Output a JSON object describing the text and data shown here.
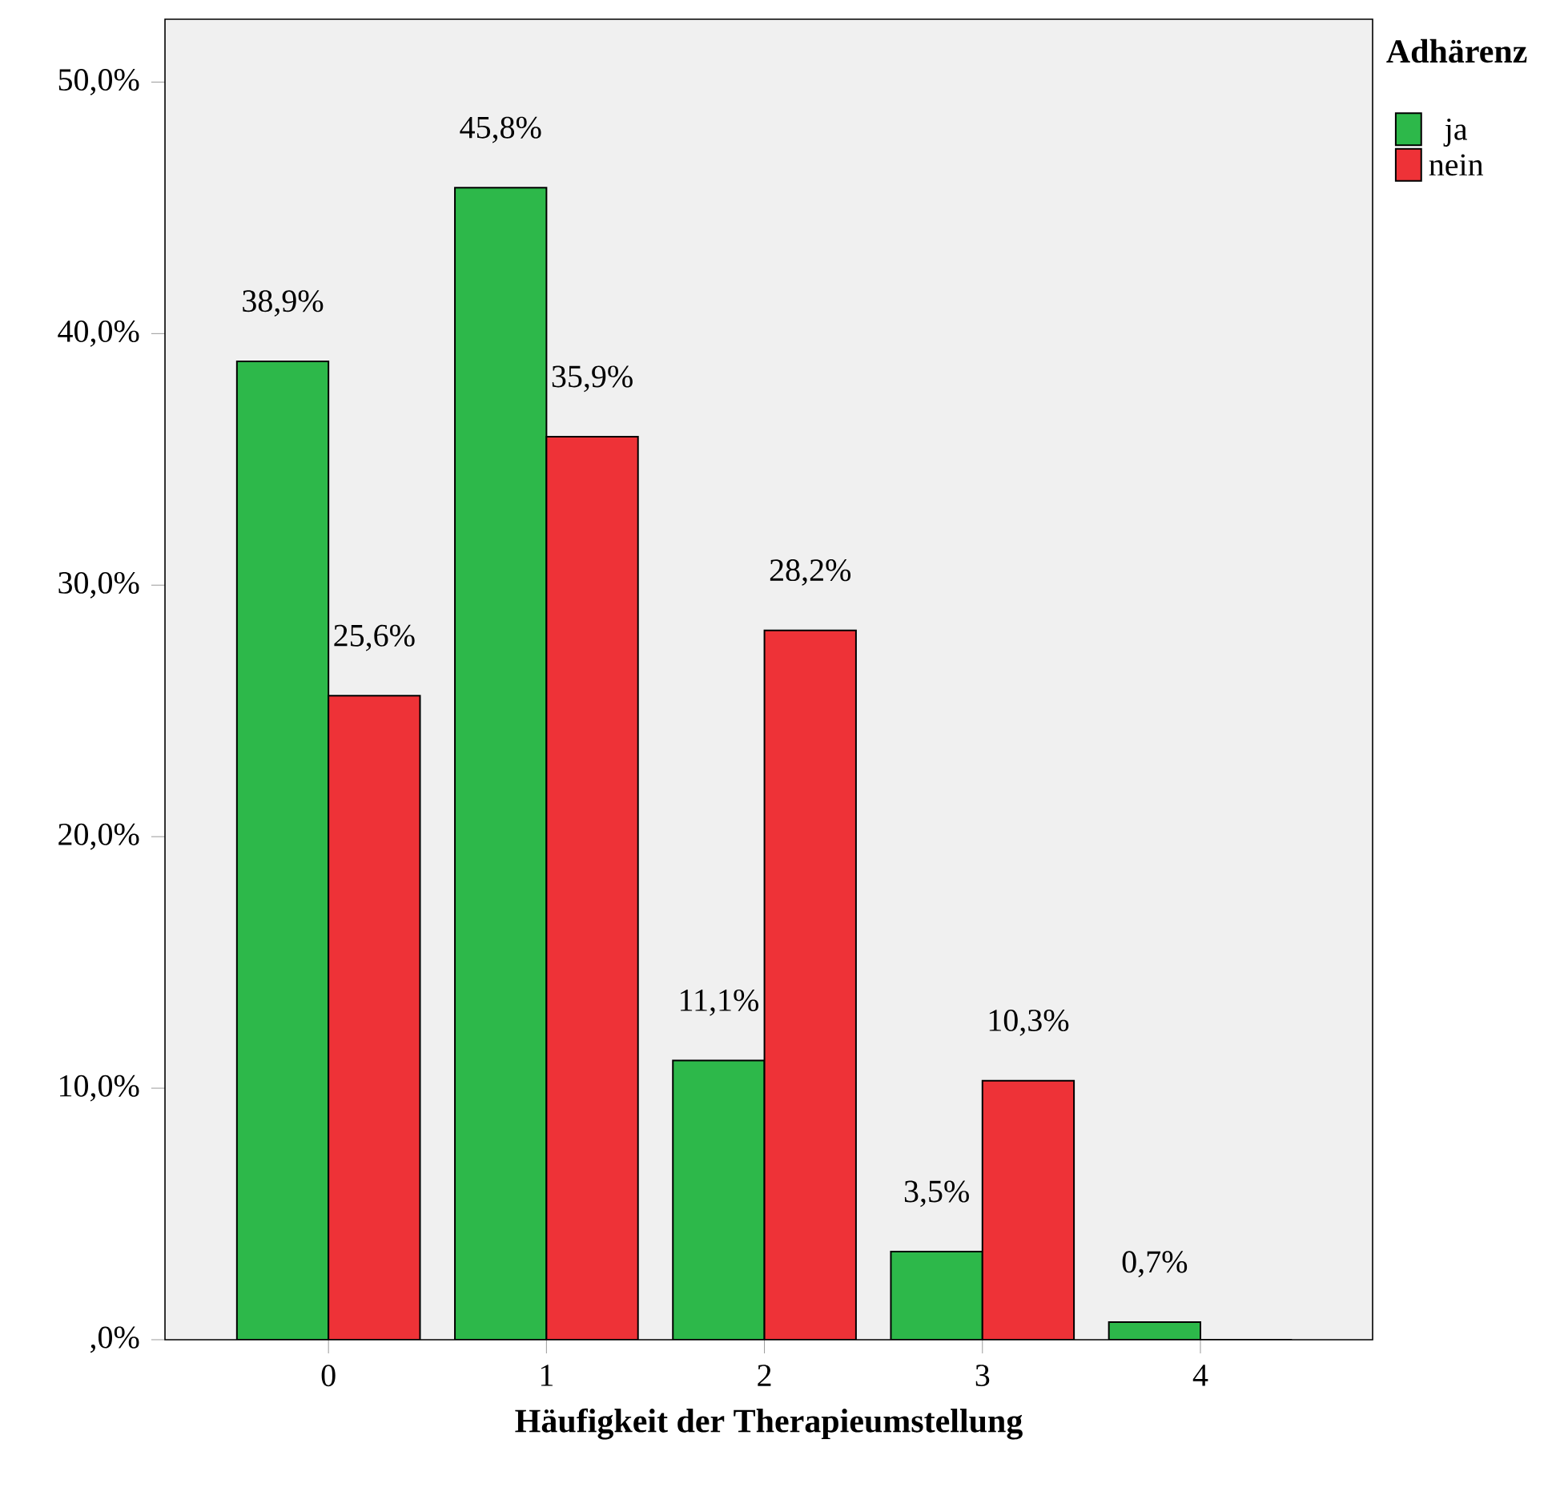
{
  "chart_data": {
    "type": "bar",
    "xlabel": "Häufigkeit der Therapieumstellung",
    "legend_title": "Adhärenz",
    "categories": [
      "0",
      "1",
      "2",
      "3",
      "4"
    ],
    "series": [
      {
        "name": "ja",
        "color": "#2db84a",
        "values": [
          38.9,
          45.8,
          11.1,
          3.5,
          0.7
        ],
        "value_labels": [
          "38,9%",
          "45,8%",
          "11,1%",
          "3,5%",
          "0,7%"
        ]
      },
      {
        "name": "nein",
        "color": "#ee3237",
        "values": [
          25.6,
          35.9,
          28.2,
          10.3,
          0
        ],
        "value_labels": [
          "25,6%",
          "35,9%",
          "28,2%",
          "10,3%",
          null
        ]
      }
    ],
    "ylim": [
      0,
      52.5
    ],
    "yticks": [
      {
        "value": 0,
        "label": ",0%"
      },
      {
        "value": 10,
        "label": "10,0%"
      },
      {
        "value": 20,
        "label": "20,0%"
      },
      {
        "value": 30,
        "label": "30,0%"
      },
      {
        "value": 40,
        "label": "40,0%"
      },
      {
        "value": 50,
        "label": "50,0%"
      }
    ],
    "legend": "top right",
    "grid": false
  }
}
